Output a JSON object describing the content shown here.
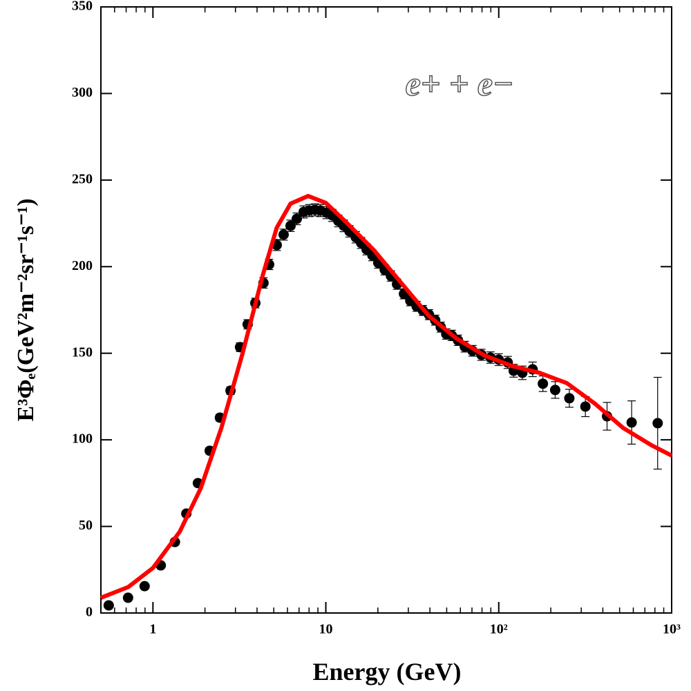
{
  "chart_data": {
    "type": "scatter",
    "xlabel": "Energy (GeV)",
    "ylabel": "E³Φₑ(GeV²m⁻²sr⁻¹s⁻¹)",
    "annotation": "e+ + e−",
    "xlog": true,
    "xlim": [
      0.5,
      1000
    ],
    "ylim": [
      0,
      350
    ],
    "xticks": [
      1,
      10,
      {
        "value": 100,
        "label": "10²"
      },
      {
        "value": 1000,
        "label": "10³"
      }
    ],
    "yticks": [
      0,
      50,
      100,
      150,
      200,
      250,
      300,
      350
    ],
    "series": [
      {
        "type": "scatter",
        "color": "#000000",
        "x": [
          0.555,
          0.718,
          0.895,
          1.11,
          1.34,
          1.56,
          1.82,
          2.13,
          2.44,
          2.81,
          3.19,
          3.53,
          3.91,
          4.36,
          4.7,
          5.2,
          5.7,
          6.25,
          6.79,
          7.44,
          8.02,
          8.65,
          9.3,
          10.1,
          10.9,
          11.8,
          12.7,
          13.7,
          14.9,
          16.0,
          17.2,
          18.6,
          20.1,
          21.9,
          23.8,
          25.8,
          28.3,
          30.8,
          33.5,
          36.4,
          39.5,
          42.9,
          46.2,
          49.7,
          53.5,
          58.1,
          63.6,
          70.5,
          79.4,
          89.5,
          100,
          112.7,
          122,
          137,
          157,
          180,
          212,
          256,
          317,
          423,
          587,
          830
        ],
        "values": [
          4.4,
          8.8,
          15.5,
          27.5,
          41,
          57.4,
          75,
          93.7,
          112.8,
          128.4,
          153.5,
          166.7,
          179,
          190.6,
          201.3,
          212.5,
          218.5,
          223.6,
          227.6,
          231.6,
          232.4,
          232.8,
          232.4,
          231.2,
          229.6,
          226.4,
          223.6,
          220.4,
          217,
          213.7,
          210,
          206.5,
          202.2,
          198.2,
          194.6,
          189.9,
          184.3,
          180.3,
          177.1,
          174.7,
          172.3,
          169.1,
          165.1,
          161.1,
          160.3,
          157.5,
          153.8,
          151.4,
          149.1,
          147.5,
          146.3,
          144.7,
          139.9,
          138.7,
          140.7,
          132.4,
          128.8,
          124,
          119.2,
          113.6,
          110,
          109.6
        ],
        "errors": [
          0.5,
          0.5,
          0.6,
          0.8,
          1,
          1.2,
          1.5,
          1.8,
          2,
          2.2,
          2.5,
          2.7,
          2.8,
          3,
          3,
          3.2,
          3.2,
          3.3,
          3.4,
          3.5,
          3.5,
          3.5,
          3.5,
          3.5,
          3.5,
          3.4,
          3.4,
          3.3,
          3.3,
          3.2,
          3.2,
          3.1,
          3.1,
          3,
          3,
          3,
          2.9,
          2.9,
          2.9,
          2.9,
          2.9,
          2.9,
          2.9,
          3,
          3,
          3,
          3.1,
          3.1,
          3.2,
          3.3,
          3.4,
          3.5,
          3.7,
          3.9,
          4.2,
          4.5,
          4.8,
          5.2,
          5.8,
          8,
          12.5,
          26.5
        ]
      },
      {
        "type": "line",
        "color": "#ff0000",
        "x": [
          0.5,
          0.72,
          1,
          1.43,
          1.89,
          2.49,
          3.28,
          4.33,
          5.2,
          6.25,
          7.9,
          10,
          13.1,
          18.9,
          27.3,
          39.5,
          56.7,
          82.7,
          119,
          172,
          248,
          361,
          525,
          764,
          1000
        ],
        "values": [
          8.8,
          15,
          26,
          47,
          72,
          107,
          149,
          195.5,
          222.5,
          236.4,
          240.8,
          236.8,
          225.7,
          209.7,
          190.6,
          171.5,
          158.7,
          148.7,
          142.7,
          138.7,
          132.7,
          120.8,
          106.8,
          96.9,
          90.9
        ]
      }
    ]
  }
}
